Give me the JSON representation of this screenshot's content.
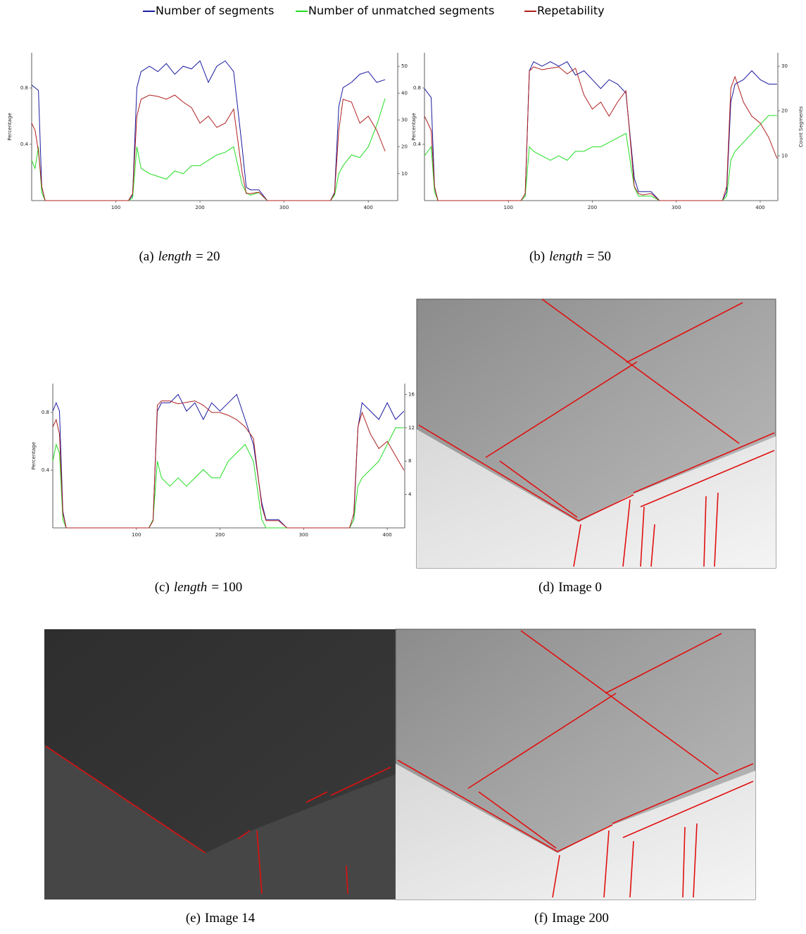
{
  "chart_data": [
    {
      "type": "line",
      "ylabel": "Percentage",
      "x": [
        0,
        4,
        8,
        12,
        16,
        20,
        115,
        120,
        125,
        130,
        140,
        150,
        160,
        170,
        180,
        190,
        200,
        210,
        220,
        230,
        240,
        250,
        255,
        260,
        270,
        280,
        290,
        355,
        360,
        365,
        370,
        380,
        390,
        400,
        410,
        420
      ],
      "xlim": [
        0,
        435
      ],
      "xticks": [
        100,
        200,
        300,
        400
      ],
      "ylim": [
        0,
        1.05
      ],
      "yticks": [
        0.4,
        0.8
      ],
      "y2lim": [
        0,
        55
      ],
      "y2ticks": [
        10,
        20,
        30,
        40,
        50
      ],
      "series": [
        {
          "name": "Number of segments",
          "color": "#1a1aa0",
          "axis": "y2",
          "values": [
            43,
            42,
            41,
            5,
            0,
            0,
            0,
            2,
            42,
            48,
            50,
            48,
            51,
            47,
            50,
            49,
            52,
            44,
            50,
            52,
            48,
            20,
            5,
            4,
            4,
            0,
            0,
            0,
            3,
            35,
            42,
            44,
            47,
            48,
            44,
            45
          ]
        },
        {
          "name": "Number of unmatched segments",
          "color": "#22dd22",
          "axis": "y2",
          "values": [
            15,
            12,
            20,
            3,
            0,
            0,
            0,
            1,
            20,
            12,
            10,
            9,
            8,
            11,
            10,
            13,
            13,
            15,
            17,
            18,
            20,
            6,
            3,
            2,
            3,
            0,
            0,
            0,
            2,
            10,
            13,
            17,
            16,
            20,
            28,
            38
          ]
        },
        {
          "name": "Repetability",
          "color": "#b02020",
          "values": [
            0.55,
            0.5,
            0.35,
            0.1,
            0,
            0,
            0,
            0.05,
            0.6,
            0.72,
            0.75,
            0.74,
            0.72,
            0.75,
            0.7,
            0.66,
            0.55,
            0.6,
            0.52,
            0.55,
            0.65,
            0.2,
            0.05,
            0.05,
            0.06,
            0,
            0,
            0,
            0.05,
            0.5,
            0.72,
            0.7,
            0.55,
            0.6,
            0.5,
            0.35
          ]
        }
      ]
    },
    {
      "type": "line",
      "ylabel": "Percentage",
      "y2label": "Count Segments",
      "x": [
        0,
        4,
        8,
        12,
        16,
        20,
        115,
        120,
        125,
        130,
        140,
        150,
        160,
        170,
        180,
        190,
        200,
        210,
        220,
        230,
        240,
        250,
        255,
        260,
        270,
        280,
        290,
        355,
        360,
        365,
        370,
        380,
        390,
        400,
        410,
        420
      ],
      "xlim": [
        0,
        421
      ],
      "xticks": [
        100,
        200,
        300,
        400
      ],
      "ylim": [
        0,
        1.05
      ],
      "yticks": [
        0.4,
        0.8
      ],
      "y2lim": [
        0,
        33
      ],
      "y2ticks": [
        10,
        20,
        30
      ],
      "series": [
        {
          "color": "#1a1aa0",
          "axis": "y2",
          "values": [
            25,
            24,
            23,
            3,
            0,
            0,
            0,
            1,
            29,
            31,
            30,
            31,
            30,
            31,
            28,
            29,
            27,
            25,
            27,
            26,
            24,
            5,
            2,
            2,
            2,
            0,
            0,
            0,
            2,
            22,
            26,
            27,
            29,
            27,
            26,
            26
          ]
        },
        {
          "color": "#22dd22",
          "axis": "y2",
          "values": [
            10,
            11,
            12,
            2,
            0,
            0,
            0,
            1,
            12,
            11,
            10,
            9,
            10,
            9,
            11,
            11,
            12,
            12,
            13,
            14,
            15,
            3,
            1,
            1,
            1,
            0,
            0,
            0,
            1,
            9,
            11,
            13,
            15,
            17,
            19,
            19
          ]
        },
        {
          "color": "#b02020",
          "values": [
            0.6,
            0.55,
            0.5,
            0.1,
            0,
            0,
            0,
            0.05,
            0.92,
            0.95,
            0.93,
            0.94,
            0.95,
            0.9,
            0.94,
            0.75,
            0.65,
            0.7,
            0.6,
            0.7,
            0.78,
            0.1,
            0.05,
            0.04,
            0.05,
            0,
            0,
            0,
            0.1,
            0.8,
            0.88,
            0.7,
            0.6,
            0.55,
            0.45,
            0.3
          ]
        }
      ]
    },
    {
      "type": "line",
      "ylabel": "Percentage",
      "x": [
        0,
        4,
        8,
        12,
        16,
        20,
        115,
        120,
        125,
        130,
        140,
        150,
        160,
        170,
        180,
        190,
        200,
        210,
        220,
        230,
        240,
        250,
        255,
        260,
        270,
        280,
        290,
        355,
        360,
        365,
        370,
        380,
        390,
        400,
        410,
        420
      ],
      "xlim": [
        0,
        421
      ],
      "xticks": [
        100,
        200,
        300,
        400
      ],
      "ylim": [
        0,
        1.0
      ],
      "yticks": [
        0.4,
        0.8
      ],
      "y2lim": [
        0,
        17.3
      ],
      "y2ticks": [
        4,
        8,
        12,
        16
      ],
      "series": [
        {
          "color": "#1a1aa0",
          "axis": "y2",
          "values": [
            14,
            15,
            14,
            2,
            0,
            0,
            0,
            1,
            14,
            15,
            15,
            16,
            14,
            15,
            13,
            15,
            14,
            15,
            16,
            13,
            10,
            3,
            1,
            1,
            1,
            0,
            0,
            0,
            1,
            12,
            15,
            14,
            13,
            15,
            13,
            14
          ]
        },
        {
          "color": "#22dd22",
          "axis": "y2",
          "values": [
            8,
            10,
            9,
            1,
            0,
            0,
            0,
            1,
            8,
            6,
            5,
            6,
            5,
            6,
            7,
            6,
            6,
            8,
            9,
            10,
            8,
            1,
            0,
            0,
            0,
            0,
            0,
            0,
            1,
            5,
            6,
            7,
            8,
            10,
            12,
            12
          ]
        },
        {
          "color": "#b02020",
          "values": [
            0.7,
            0.75,
            0.65,
            0.1,
            0,
            0,
            0,
            0.05,
            0.85,
            0.88,
            0.88,
            0.86,
            0.87,
            0.88,
            0.85,
            0.8,
            0.8,
            0.78,
            0.75,
            0.7,
            0.62,
            0.15,
            0.05,
            0.05,
            0.05,
            0,
            0,
            0,
            0.1,
            0.7,
            0.8,
            0.65,
            0.55,
            0.6,
            0.5,
            0.4
          ]
        }
      ]
    }
  ],
  "captions": [
    {
      "label": "(a)",
      "var": "length",
      "rest": "= 20"
    },
    {
      "label": "(b)",
      "var": "length",
      "rest": "= 50"
    },
    {
      "label": "(c)",
      "var": "length",
      "rest": "= 100"
    },
    {
      "label": "(d)",
      "text": "Image 0"
    },
    {
      "label": "(e)",
      "text": "Image 14"
    },
    {
      "label": "(f)",
      "text": "Image 200"
    }
  ]
}
